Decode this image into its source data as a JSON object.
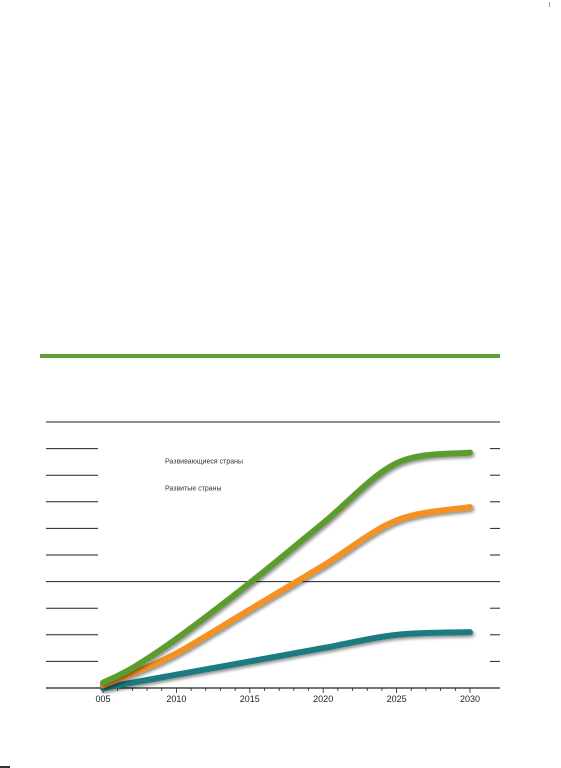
{
  "colors": {
    "accent_rule": "#5da135"
  },
  "chart_data": {
    "type": "line",
    "xlim": [
      2005,
      2030
    ],
    "ylim": [
      0,
      10
    ],
    "grid": "horizontal lines at major ticks",
    "x_tick_labels": [
      "005",
      "2010",
      "2015",
      "2020",
      "2025",
      "2030"
    ],
    "legend_position": "top-left",
    "series": [
      {
        "name": "",
        "color": "#5b9c2f",
        "x": [
          2005,
          2007,
          2010,
          2015,
          2020,
          2025,
          2030
        ],
        "y": [
          0.2,
          0.75,
          1.85,
          3.95,
          6.2,
          8.45,
          8.85
        ]
      },
      {
        "name": "Развивающиеся страны",
        "color": "#f39120",
        "x": [
          2005,
          2007,
          2010,
          2015,
          2020,
          2025,
          2030
        ],
        "y": [
          0.1,
          0.55,
          1.3,
          2.95,
          4.6,
          6.3,
          6.8
        ]
      },
      {
        "name": "Развитые страны",
        "color": "#1f7a80",
        "x": [
          2005,
          2010,
          2015,
          2020,
          2025,
          2030
        ],
        "y": [
          0.0,
          0.5,
          1.0,
          1.5,
          2.0,
          2.1
        ]
      }
    ]
  }
}
